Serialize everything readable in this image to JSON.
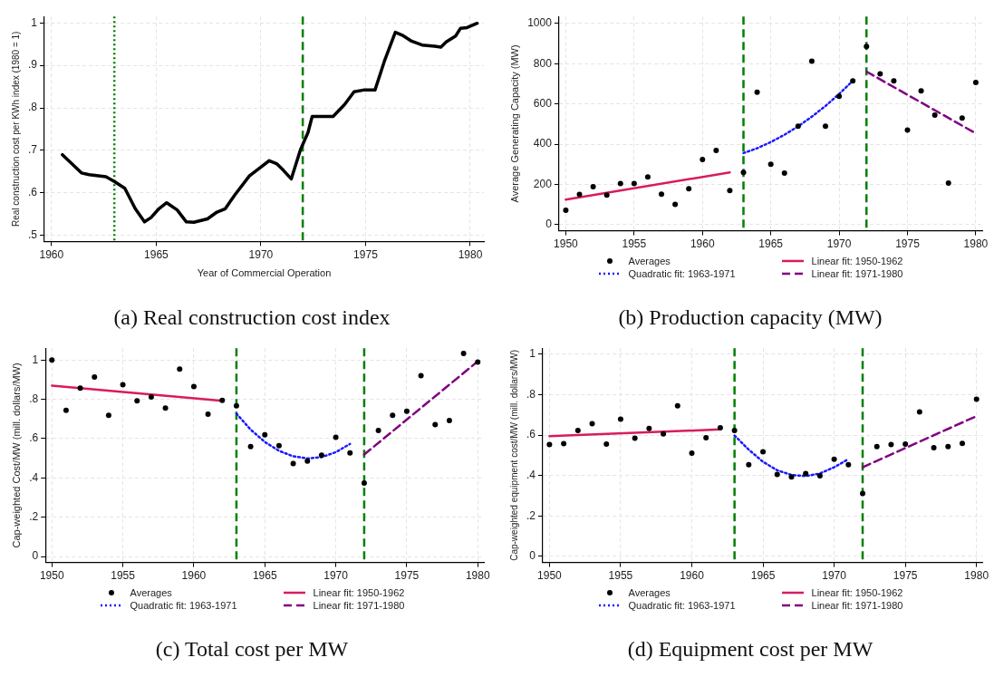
{
  "chart_data": [
    {
      "type": "line",
      "title": "(a) Real construction cost index",
      "xlabel": "Year of Commercial Operation",
      "ylabel": "Real construction cost per KWh index (1980 = 1)",
      "color": "#000000",
      "x": [
        1960.52,
        1961.43,
        1961.8,
        1962.6,
        1963.0,
        1963.5,
        1964.0,
        1964.44,
        1964.75,
        1965.13,
        1965.5,
        1966.0,
        1966.44,
        1966.8,
        1967.45,
        1967.9,
        1968.3,
        1968.75,
        1969.45,
        1970.0,
        1970.4,
        1970.75,
        1971.06,
        1971.45,
        1971.9,
        1972.25,
        1972.45,
        1973.45,
        1974.0,
        1974.45,
        1974.9,
        1975.45,
        1975.9,
        1976.42,
        1976.75,
        1977.2,
        1977.7,
        1978.3,
        1978.6,
        1978.85,
        1979.3,
        1979.53,
        1979.85,
        1980.33
      ],
      "values": [
        0.69,
        0.647,
        0.643,
        0.638,
        0.627,
        0.611,
        0.563,
        0.532,
        0.542,
        0.563,
        0.577,
        0.56,
        0.532,
        0.531,
        0.539,
        0.555,
        0.563,
        0.595,
        0.64,
        0.661,
        0.676,
        0.669,
        0.654,
        0.633,
        0.703,
        0.742,
        0.78,
        0.78,
        0.808,
        0.838,
        0.842,
        0.842,
        0.91,
        0.978,
        0.971,
        0.957,
        0.948,
        0.945,
        0.943,
        0.955,
        0.969,
        0.987,
        0.989,
        0.999
      ],
      "xlim": [
        1959.66,
        1980.65
      ],
      "xticks": [
        1960,
        1965,
        1970,
        1975,
        1980
      ],
      "ylim": [
        0.486,
        1.015
      ],
      "yticks": [
        {
          "value": 0.5,
          "label": ".5"
        },
        {
          "value": 0.6,
          "label": ".6"
        },
        {
          "value": 0.7,
          "label": ".7"
        },
        {
          "value": 0.8,
          "label": ".8"
        },
        {
          "value": 0.9,
          "label": ".9"
        },
        {
          "value": 1,
          "label": "1"
        }
      ],
      "ref_lines": [
        {
          "axis": "x",
          "value": 1963,
          "color": "#008000",
          "line_style": "dotted"
        },
        {
          "axis": "x",
          "value": 1972,
          "color": "#008000",
          "line_style": "dashed"
        }
      ],
      "grid": true
    },
    {
      "type": "scatter",
      "title": "(b) Production capacity (MW)",
      "ylabel": "Average Generating Capacity (MW)",
      "legend": "bottom",
      "grid": true,
      "xlim": [
        1949.5,
        1980.47
      ],
      "xticks": [
        1950,
        1955,
        1960,
        1965,
        1970,
        1975,
        1980
      ],
      "ylim": [
        -30,
        1035
      ],
      "yticks": [
        0,
        200,
        400,
        600,
        800,
        1000
      ],
      "ref_lines": [
        {
          "axis": "x",
          "value": 1963,
          "color": "#008000",
          "line_style": "dashed"
        },
        {
          "axis": "x",
          "value": 1972,
          "color": "#008000",
          "line_style": "dashed"
        }
      ],
      "series": [
        {
          "name": "Averages",
          "type": "scatter",
          "marker": "circle",
          "color": "#000000",
          "x": [
            1950,
            1951,
            1952,
            1953,
            1954,
            1955,
            1956,
            1957,
            1958,
            1959,
            1960,
            1961,
            1962,
            1963,
            1964,
            1965,
            1966,
            1967,
            1968,
            1969,
            1970,
            1971,
            1972,
            1973,
            1974,
            1975,
            1976,
            1977,
            1978,
            1979,
            1980
          ],
          "values": [
            72,
            151,
            189,
            147,
            205,
            205,
            237,
            152,
            101,
            179,
            324,
            369,
            170,
            260,
            659,
            300,
            256,
            490,
            813,
            490,
            638,
            715,
            886,
            750,
            715,
            471,
            665,
            545,
            207,
            530,
            707
          ]
        },
        {
          "name": "Quadratic fit: 1963-1971",
          "type": "line",
          "line_style": "dotted",
          "color": "#1a1aff",
          "x": [
            1963,
            1964,
            1965,
            1966,
            1967,
            1968,
            1969,
            1970,
            1971
          ],
          "values": [
            356,
            380,
            411,
            447,
            489,
            537,
            590,
            650,
            715
          ]
        },
        {
          "name": "Linear fit: 1950-1962",
          "type": "line",
          "line_style": "solid",
          "color": "#d81b60",
          "x": [
            1950,
            1962
          ],
          "values": [
            125,
            260
          ]
        },
        {
          "name": "Linear fit: 1971-1980",
          "type": "line",
          "line_style": "dashed",
          "color": "#800080",
          "x": [
            1972,
            1980
          ],
          "values": [
            761,
            454
          ]
        }
      ]
    },
    {
      "type": "scatter",
      "title": "(c) Total cost per MW",
      "ylabel": "Cap-weighted Cost/MW (mill. dollars/MW)",
      "legend": "bottom",
      "grid": true,
      "xlim": [
        1949.55,
        1980.43
      ],
      "xticks": [
        1950,
        1955,
        1960,
        1965,
        1970,
        1975,
        1980
      ],
      "ylim": [
        -0.03,
        1.06
      ],
      "yticks": [
        0,
        {
          "value": 0.2,
          "label": ".2"
        },
        {
          "value": 0.4,
          "label": ".4"
        },
        {
          "value": 0.6,
          "label": ".6"
        },
        {
          "value": 0.8,
          "label": ".8"
        },
        1
      ],
      "ref_lines": [
        {
          "axis": "x",
          "value": 1963,
          "color": "#008000",
          "line_style": "dashed"
        },
        {
          "axis": "x",
          "value": 1972,
          "color": "#008000",
          "line_style": "dashed"
        }
      ],
      "series": [
        {
          "name": "Averages",
          "type": "scatter",
          "marker": "circle",
          "color": "#000000",
          "x": [
            1950,
            1951,
            1952,
            1953,
            1954,
            1955,
            1956,
            1957,
            1958,
            1959,
            1960,
            1961,
            1962,
            1963,
            1964,
            1965,
            1966,
            1967,
            1968,
            1969,
            1970,
            1971,
            1972,
            1973,
            1974,
            1975,
            1976,
            1977,
            1978,
            1979,
            1980
          ],
          "values": [
            1.0,
            0.744,
            0.857,
            0.913,
            0.719,
            0.874,
            0.792,
            0.812,
            0.756,
            0.954,
            0.865,
            0.724,
            0.795,
            0.767,
            0.559,
            0.619,
            0.564,
            0.473,
            0.486,
            0.516,
            0.607,
            0.527,
            0.374,
            0.641,
            0.719,
            0.739,
            0.92,
            0.671,
            0.692,
            1.033,
            0.99
          ]
        },
        {
          "name": "Quadratic fit: 1963-1971",
          "type": "line",
          "line_style": "dotted",
          "color": "#1a1aff",
          "x": [
            1963,
            1964,
            1965,
            1966,
            1967,
            1968,
            1969,
            1970,
            1971
          ],
          "values": [
            0.727,
            0.646,
            0.583,
            0.538,
            0.51,
            0.499,
            0.506,
            0.531,
            0.573
          ]
        },
        {
          "name": "Linear fit: 1950-1962",
          "type": "line",
          "line_style": "solid",
          "color": "#d81b60",
          "x": [
            1950,
            1962
          ],
          "values": [
            0.87,
            0.792
          ]
        },
        {
          "name": "Linear fit: 1971-1980",
          "type": "line",
          "line_style": "dashed",
          "color": "#800080",
          "x": [
            1972,
            1980
          ],
          "values": [
            0.519,
            0.993
          ]
        }
      ]
    },
    {
      "type": "scatter",
      "title": "(d) Equipment cost per MW",
      "ylabel": "Cap-weighted equipment cost/MW (mill. dollars/MW)",
      "legend": "bottom",
      "grid": true,
      "xlim": [
        1949.53,
        1980.4
      ],
      "xticks": [
        1950,
        1955,
        1960,
        1965,
        1970,
        1975,
        1980
      ],
      "ylim": [
        -0.03,
        1.03
      ],
      "yticks": [
        0,
        {
          "value": 0.2,
          "label": ".2"
        },
        {
          "value": 0.4,
          "label": ".4"
        },
        {
          "value": 0.6,
          "label": ".6"
        },
        {
          "value": 0.8,
          "label": ".8"
        },
        1
      ],
      "ref_lines": [
        {
          "axis": "x",
          "value": 1963,
          "color": "#008000",
          "line_style": "dashed"
        },
        {
          "axis": "x",
          "value": 1972,
          "color": "#008000",
          "line_style": "dashed"
        }
      ],
      "series": [
        {
          "name": "Averages",
          "type": "scatter",
          "marker": "circle",
          "color": "#000000",
          "x": [
            1950,
            1951,
            1952,
            1953,
            1954,
            1955,
            1956,
            1957,
            1958,
            1959,
            1960,
            1961,
            1962,
            1963,
            1964,
            1965,
            1966,
            1967,
            1968,
            1969,
            1970,
            1971,
            1972,
            1973,
            1974,
            1975,
            1976,
            1977,
            1978,
            1979,
            1980
          ],
          "values": [
            0.553,
            0.558,
            0.623,
            0.657,
            0.556,
            0.679,
            0.585,
            0.633,
            0.606,
            0.745,
            0.511,
            0.587,
            0.636,
            0.623,
            0.454,
            0.518,
            0.405,
            0.393,
            0.41,
            0.399,
            0.481,
            0.454,
            0.311,
            0.543,
            0.553,
            0.556,
            0.715,
            0.538,
            0.543,
            0.559,
            0.777
          ]
        },
        {
          "name": "Quadratic fit: 1963-1971",
          "type": "line",
          "line_style": "dotted",
          "color": "#1a1aff",
          "x": [
            1963,
            1964,
            1965,
            1966,
            1967,
            1968,
            1969,
            1970,
            1971
          ],
          "values": [
            0.598,
            0.528,
            0.468,
            0.426,
            0.403,
            0.397,
            0.41,
            0.441,
            0.481
          ]
        },
        {
          "name": "Linear fit: 1950-1962",
          "type": "line",
          "line_style": "solid",
          "color": "#d81b60",
          "x": [
            1950,
            1962
          ],
          "values": [
            0.595,
            0.628
          ]
        },
        {
          "name": "Linear fit: 1971-1980",
          "type": "line",
          "line_style": "dashed",
          "color": "#800080",
          "x": [
            1972,
            1980
          ],
          "values": [
            0.441,
            0.694
          ]
        }
      ]
    }
  ]
}
